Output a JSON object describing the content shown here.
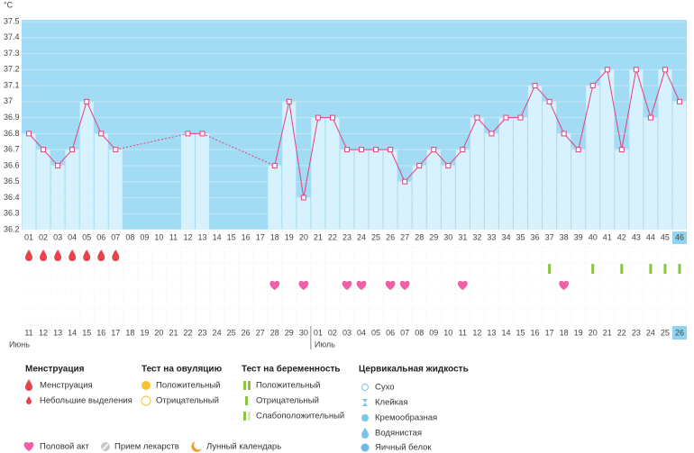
{
  "chart_data": {
    "type": "line",
    "unit": "°C",
    "categories": [
      "01",
      "02",
      "03",
      "04",
      "05",
      "06",
      "07",
      "08",
      "09",
      "10",
      "11",
      "12",
      "13",
      "14",
      "15",
      "16",
      "17",
      "18",
      "19",
      "20",
      "21",
      "22",
      "23",
      "24",
      "25",
      "26",
      "27",
      "28",
      "29",
      "30",
      "31",
      "32",
      "33",
      "34",
      "35",
      "36",
      "37",
      "38",
      "39",
      "40",
      "41",
      "42",
      "43",
      "44",
      "45",
      "46"
    ],
    "values": [
      36.8,
      36.7,
      36.6,
      36.7,
      37.0,
      36.8,
      36.7,
      null,
      null,
      null,
      null,
      36.8,
      36.8,
      null,
      null,
      null,
      null,
      36.6,
      37.0,
      36.4,
      36.9,
      36.9,
      36.7,
      36.7,
      36.7,
      36.7,
      36.5,
      36.6,
      36.7,
      36.6,
      36.7,
      36.9,
      36.8,
      36.9,
      36.9,
      37.1,
      37.0,
      36.8,
      36.7,
      37.1,
      37.2,
      36.7,
      37.2,
      36.9,
      37.2,
      37.0
    ],
    "color": "#e2407c",
    "ylim": [
      36.2,
      37.5
    ],
    "yticks": [
      36.2,
      36.3,
      36.4,
      36.5,
      36.6,
      36.7,
      36.8,
      36.9,
      37,
      37.1,
      37.2,
      37.3,
      37.4,
      37.5
    ],
    "grid": true,
    "highlight_category": "46",
    "dates": [
      "11",
      "12",
      "13",
      "14",
      "15",
      "16",
      "17",
      "18",
      "19",
      "20",
      "21",
      "22",
      "23",
      "24",
      "25",
      "26",
      "27",
      "28",
      "29",
      "30",
      "01",
      "02",
      "03",
      "04",
      "05",
      "06",
      "07",
      "08",
      "09",
      "10",
      "11",
      "12",
      "13",
      "14",
      "15",
      "16",
      "17",
      "18",
      "19",
      "20",
      "21",
      "22",
      "23",
      "24",
      "25",
      "26"
    ],
    "weekend": [
      false,
      false,
      true,
      true,
      false,
      false,
      false,
      false,
      false,
      true,
      true,
      false,
      false,
      false,
      false,
      false,
      true,
      true,
      false,
      false,
      false,
      false,
      false,
      true,
      true,
      false,
      false,
      false,
      false,
      false,
      true,
      false,
      false,
      false,
      false,
      false,
      false,
      true,
      false,
      false,
      false,
      false,
      false,
      false,
      true,
      false
    ],
    "months": [
      "Июнь",
      "Июль"
    ],
    "menstruation_days": [
      1,
      2,
      3,
      4,
      5,
      6,
      7
    ],
    "pregnancy_test_negative_days": [
      37,
      40,
      42,
      44,
      45,
      46
    ],
    "intercourse_days": [
      18,
      20,
      23,
      24,
      26,
      27,
      31,
      38
    ],
    "legend": [
      {
        "title": "Менструация",
        "items": [
          "Менструация",
          "Небольшие выделения"
        ]
      },
      {
        "title": "Тест на овуляцию",
        "items": [
          "Положительный",
          "Отрицательный"
        ]
      },
      {
        "title": "Тест на беременность",
        "items": [
          "Положительный",
          "Отрицательный",
          "Слабоположительный"
        ]
      },
      {
        "title": "Цервикальная жидкость",
        "items": [
          "Сухо",
          "Клейкая",
          "Кремообразная",
          "Водянистая",
          "Яичный белок"
        ]
      }
    ],
    "legend_extra": [
      "Половой акт",
      "Прием лекарств",
      "Лунный календарь"
    ]
  }
}
